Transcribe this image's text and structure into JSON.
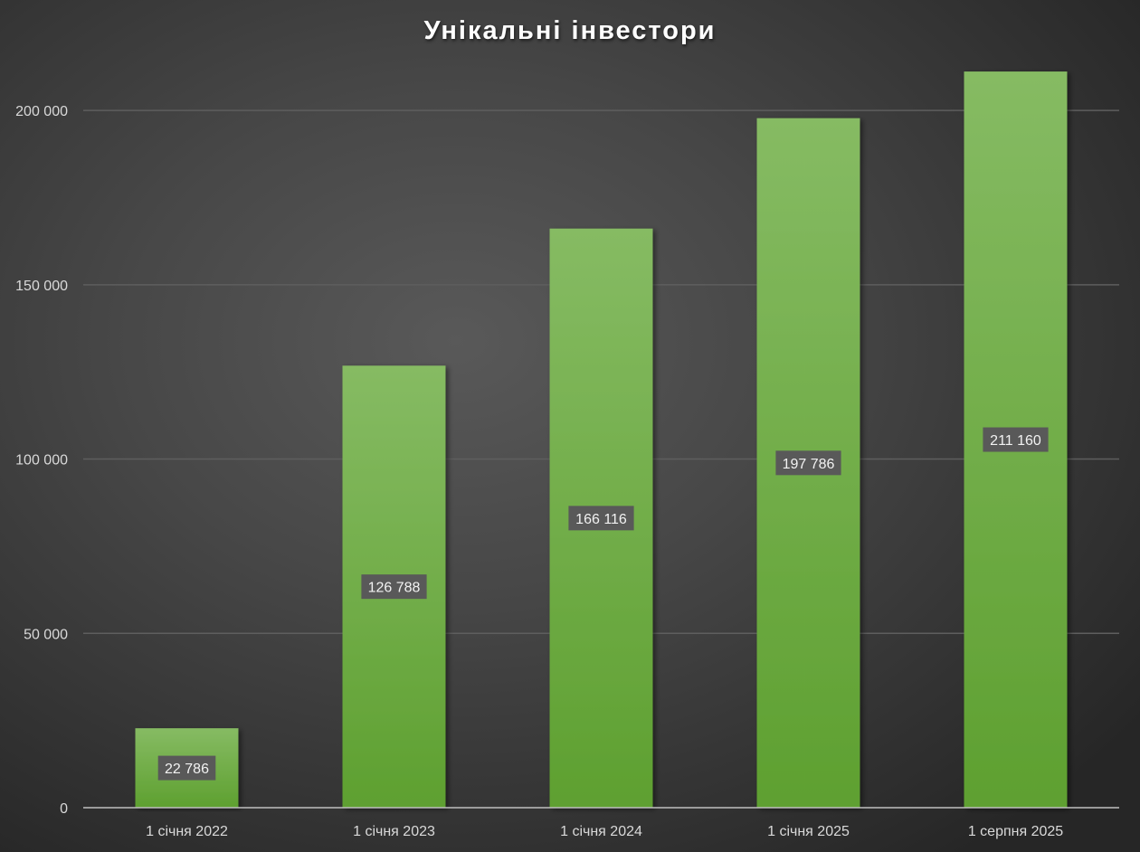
{
  "chart_data": {
    "type": "bar",
    "title": "Унікальні інвестори",
    "categories": [
      "1 січня 2022",
      "1 січня 2023",
      "1 січня 2024",
      "1 січня 2025",
      "1 серпня 2025"
    ],
    "values": [
      22786,
      126788,
      166116,
      197786,
      211160
    ],
    "data_labels": [
      "22 786",
      "126 788",
      "166 116",
      "197 786",
      "211 160"
    ],
    "y_ticks": [
      0,
      50000,
      100000,
      150000,
      200000
    ],
    "y_tick_labels": [
      "0",
      "50 000",
      "100 000",
      "150 000",
      "200 000"
    ],
    "ylim": [
      0,
      220000
    ],
    "xlabel": "",
    "ylabel": "",
    "grid": true,
    "legend": "none",
    "colors": {
      "bar_top": "#86bb63",
      "bar_bottom": "#5ea030",
      "background": "#404040",
      "gridline": "#5e5e5e",
      "axis": "#bfbfbf",
      "label_box": "#595959",
      "text": "#d9d9d9"
    }
  }
}
